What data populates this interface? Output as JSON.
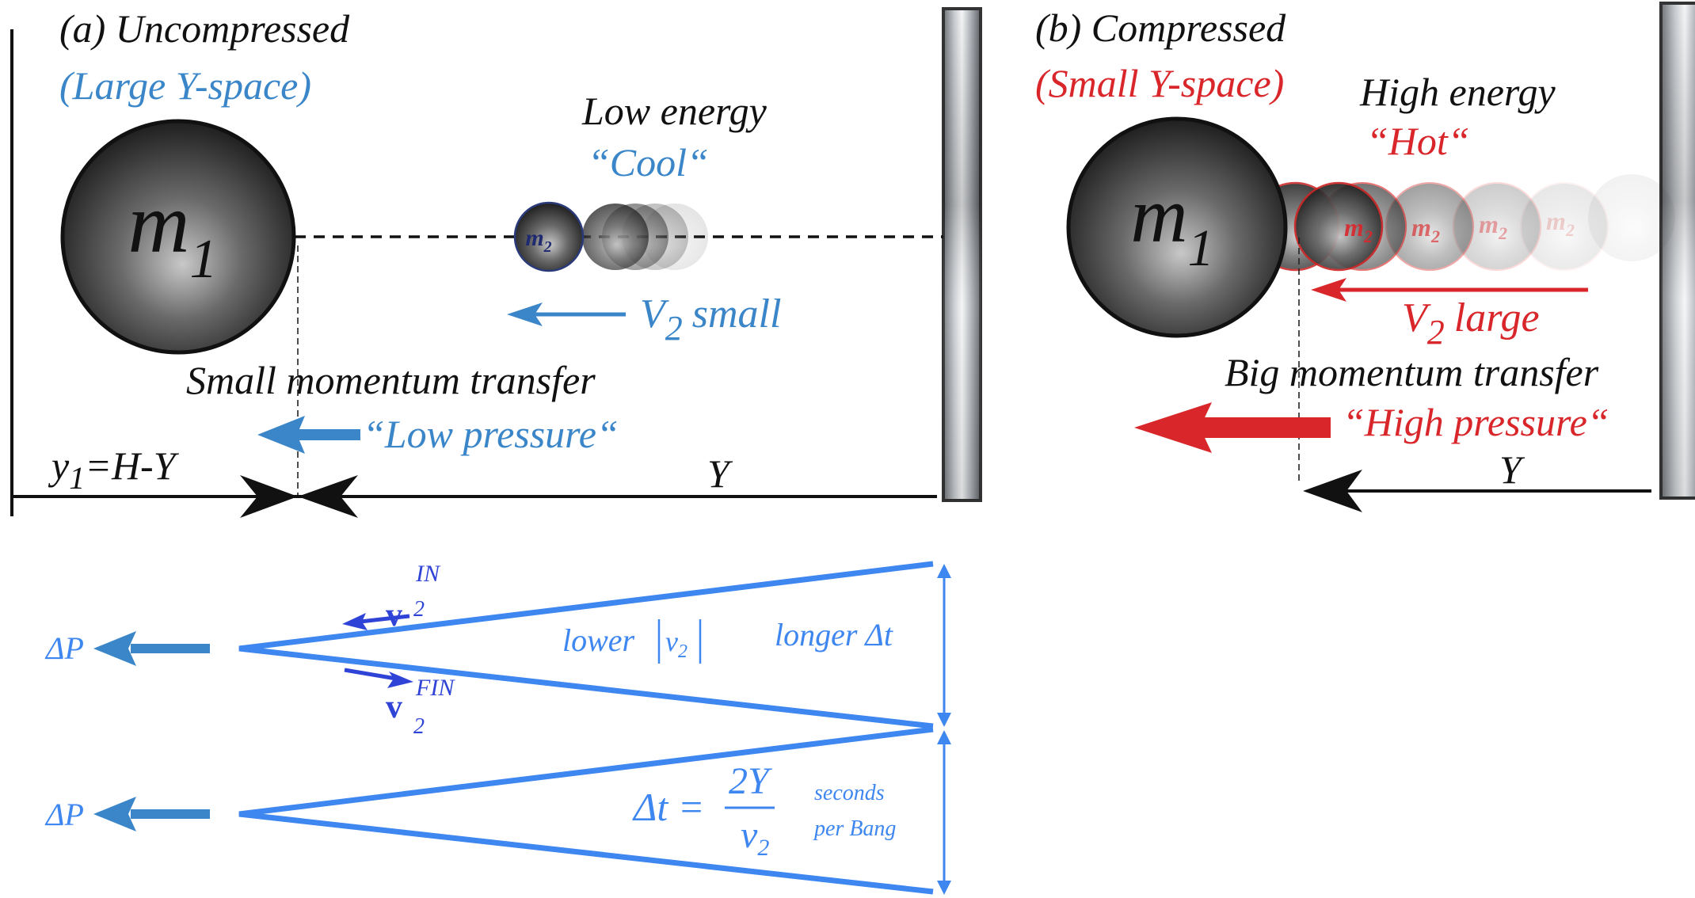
{
  "panel_a": {
    "title": "(a) Uncompressed",
    "subtitle": "(Large Y-space)",
    "energy_label": "Low energy",
    "energy_quote": "“Cool“",
    "velocity_label": "V",
    "velocity_sub": "2",
    "velocity_word": "small",
    "transfer_label": "Small momentum transfer",
    "pressure_label": "“Low pressure“",
    "y1_label": "y",
    "y1_sub": "1",
    "y1_rest": "=H-Y",
    "y_label": "Y",
    "m1_label": "m",
    "m1_sub": "1",
    "m2_label": "m",
    "m2_sub": "2"
  },
  "panel_b": {
    "title": "(b) Compressed",
    "subtitle": "(Small Y-space)",
    "energy_label": "High energy",
    "energy_quote": "“Hot“",
    "velocity_label": "V",
    "velocity_sub": "2",
    "velocity_word": "large",
    "transfer_label": "Big momentum transfer",
    "pressure_label": "“High pressure“",
    "y_label": "Y",
    "m1_label": "m",
    "m1_sub": "1",
    "m2_label": "m",
    "m2_sub": "2"
  },
  "bounce_diagram": {
    "delta_p": "ΔP",
    "v_label": "v",
    "v_sub": "2",
    "v_in_sup": "IN",
    "v_fin_sup": "FIN",
    "speed_label": "lower",
    "longer_dt": "longer Δt",
    "formula_lhs": "Δt =",
    "formula_num": "2Y",
    "formula_den": "v",
    "formula_den_sub": "2",
    "seconds_1": "seconds",
    "seconds_2": "per Bang"
  },
  "colors": {
    "cool_blue": "#3a86c8",
    "hot_red": "#d9262a",
    "diagram_blue": "#3e86f0",
    "vector_blue": "#2f43d6"
  }
}
